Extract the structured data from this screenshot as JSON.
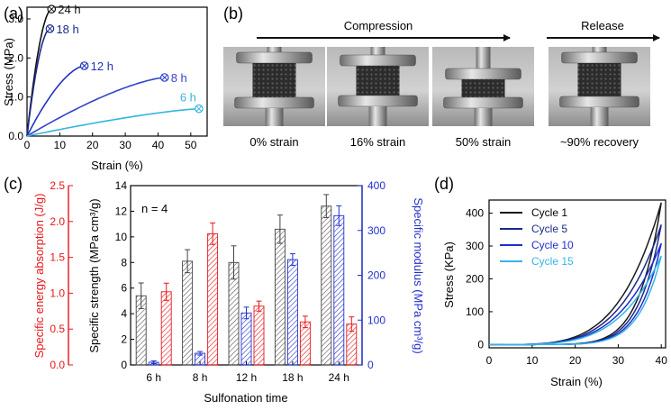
{
  "panels": {
    "a": "(a)",
    "b": "(b)",
    "c": "(c)",
    "d": "(d)"
  },
  "chart_data": [
    {
      "id": "a",
      "type": "line",
      "xlabel": "Strain (%)",
      "ylabel": "Stress (MPa)",
      "xlim": [
        0,
        55
      ],
      "ylim": [
        0,
        3.3
      ],
      "xticks": [
        0,
        10,
        20,
        30,
        40,
        50
      ],
      "yticks": [
        0.0,
        1.0,
        2.0,
        3.0
      ],
      "ytick_labels": [
        "0.0",
        "1.0",
        "2.0",
        "3.0"
      ],
      "series": [
        {
          "name": "24 h",
          "color": "#111111",
          "end": [
            7.5,
            3.25
          ],
          "curv": 1.8
        },
        {
          "name": "18 h",
          "color": "#1c2a8a",
          "end": [
            7.0,
            2.75
          ],
          "curv": 1.8
        },
        {
          "name": "12 h",
          "color": "#2233bb",
          "end": [
            17.5,
            1.8
          ],
          "curv": 1.6
        },
        {
          "name": "8 h",
          "color": "#3344cc",
          "end": [
            42.0,
            1.5
          ],
          "curv": 1.4
        },
        {
          "name": "6 h",
          "color": "#33b5dd",
          "end": [
            52.5,
            0.7
          ],
          "curv": 1.3
        }
      ]
    },
    {
      "id": "c",
      "type": "bar",
      "title": "n = 4",
      "xlabel": "Sulfonation time",
      "categories": [
        "6 h",
        "8 h",
        "12 h",
        "18 h",
        "24 h"
      ],
      "y_center": {
        "label": "Specific strength (MPa cm³/g)",
        "lim": [
          0,
          14
        ],
        "ticks": [
          0,
          2,
          4,
          6,
          8,
          10,
          12,
          14
        ]
      },
      "y_left": {
        "label": "Specific energy absorption  (J/g)",
        "lim": [
          0,
          2.5
        ],
        "ticks": [
          "0.0",
          "0.5",
          "1.0",
          "1.5",
          "2.0",
          "2.5"
        ],
        "color": "#e8161b"
      },
      "y_right": {
        "label": "Specific modulus (MPa cm³/g)",
        "lim": [
          0,
          400
        ],
        "ticks": [
          0,
          100,
          200,
          300,
          400
        ],
        "color": "#2230cc"
      },
      "series": [
        {
          "name": "Specific strength",
          "axis": "center",
          "color": "#444444",
          "values": [
            5.4,
            8.1,
            8.0,
            10.6,
            12.4
          ],
          "errors": [
            1.0,
            0.9,
            1.3,
            1.1,
            0.9
          ]
        },
        {
          "name": "Specific modulus",
          "axis": "right",
          "color": "#2230cc",
          "values": [
            6,
            26,
            116,
            235,
            333
          ],
          "errors": [
            3,
            4,
            13,
            13,
            22
          ]
        },
        {
          "name": "Specific energy absorption",
          "axis": "left",
          "color": "#e8161b",
          "values": [
            1.02,
            1.83,
            0.82,
            0.6,
            0.57
          ],
          "errors": [
            0.12,
            0.15,
            0.07,
            0.08,
            0.1
          ]
        }
      ]
    },
    {
      "id": "d",
      "type": "line",
      "xlabel": "Strain (%)",
      "ylabel": "Stress (KPa)",
      "xlim": [
        0,
        41
      ],
      "ylim": [
        -10,
        440
      ],
      "xticks": [
        0,
        10,
        20,
        30,
        40
      ],
      "yticks": [
        0,
        100,
        200,
        300,
        400
      ],
      "legend_position": "top-left",
      "series": [
        {
          "name": "Cycle 1",
          "color": "#1a1a1a",
          "peak": 432
        },
        {
          "name": "Cycle 5",
          "color": "#1a2a88",
          "peak": 365
        },
        {
          "name": "Cycle 10",
          "color": "#1f2ecc",
          "peak": 308
        },
        {
          "name": "Cycle 15",
          "color": "#33b5ea",
          "peak": 270
        }
      ]
    }
  ],
  "photos": {
    "arrow_compression": "Compression",
    "arrow_release": "Release",
    "captions": [
      "0% strain",
      "16% strain",
      "50% strain",
      "~90% recovery"
    ]
  }
}
